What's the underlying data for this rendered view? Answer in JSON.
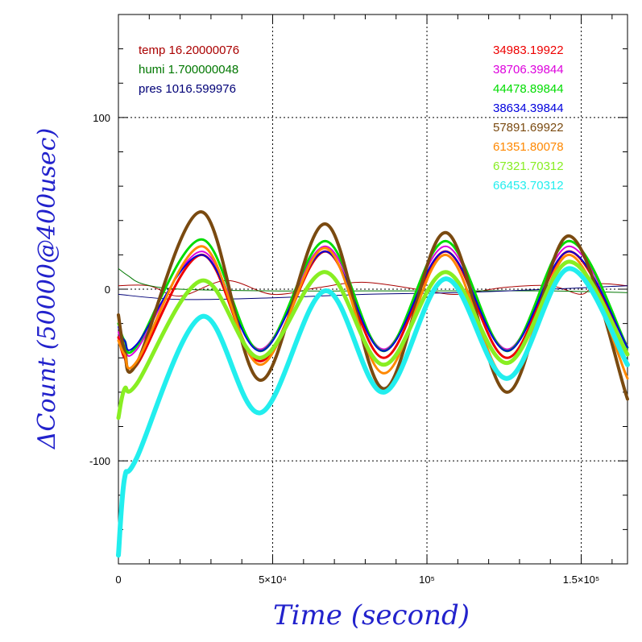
{
  "chart_data": {
    "type": "line",
    "xlabel": "Time (second)",
    "ylabel": "ΔCount (50000@400usec)",
    "xlim": [
      0,
      165000
    ],
    "ylim": [
      -160,
      160
    ],
    "x_ticks": [
      {
        "value": 0,
        "label": "0"
      },
      {
        "value": 50000,
        "label": "5×10⁴"
      },
      {
        "value": 100000,
        "label": "10⁵"
      },
      {
        "value": 150000,
        "label": "1.5×10⁵"
      }
    ],
    "y_ticks": [
      {
        "value": 100,
        "label": "100"
      },
      {
        "value": 0,
        "label": "0"
      },
      {
        "value": -100,
        "label": "-100"
      }
    ],
    "grid": true,
    "env_legend": [
      {
        "text": "temp 16.20000076",
        "color": "#aa0000"
      },
      {
        "text": "humi 1.700000048",
        "color": "#007700"
      },
      {
        "text": "pres 1016.599976",
        "color": "#000077"
      }
    ],
    "series": [
      {
        "name": "34983.19922",
        "color": "#ee0000",
        "width": 3,
        "x": [
          0,
          2000,
          6000,
          27000,
          46000,
          67000,
          86000,
          106000,
          126000,
          146000,
          165000
        ],
        "y": [
          -28,
          -40,
          -44,
          20,
          -42,
          22,
          -40,
          22,
          -40,
          22,
          -38
        ]
      },
      {
        "name": "38706.39844",
        "color": "#dd00dd",
        "width": 2,
        "x": [
          0,
          2000,
          6000,
          27000,
          46000,
          67000,
          86000,
          106000,
          126000,
          146000,
          165000
        ],
        "y": [
          -25,
          -33,
          -35,
          22,
          -35,
          25,
          -35,
          25,
          -35,
          25,
          -33
        ]
      },
      {
        "name": "44478.89844",
        "color": "#00dd00",
        "width": 3,
        "x": [
          0,
          2000,
          6000,
          27000,
          46000,
          67000,
          86000,
          106000,
          126000,
          146000,
          165000
        ],
        "y": [
          -20,
          -30,
          -33,
          29,
          -36,
          28,
          -36,
          28,
          -36,
          28,
          -34
        ]
      },
      {
        "name": "38634.39844",
        "color": "#0000dd",
        "width": 2,
        "x": [
          0,
          2000,
          6000,
          27000,
          46000,
          67000,
          86000,
          106000,
          126000,
          146000,
          165000
        ],
        "y": [
          -22,
          -30,
          -32,
          20,
          -36,
          22,
          -36,
          22,
          -36,
          22,
          -34
        ]
      },
      {
        "name": "57891.69922",
        "color": "#7a4a10",
        "width": 4,
        "x": [
          0,
          2000,
          6000,
          27000,
          46000,
          67000,
          86000,
          106000,
          126000,
          146000,
          165000
        ],
        "y": [
          -15,
          -36,
          -43,
          45,
          -53,
          38,
          -58,
          33,
          -60,
          31,
          -64
        ]
      },
      {
        "name": "61351.80078",
        "color": "#ff8800",
        "width": 3,
        "x": [
          0,
          2000,
          6000,
          27000,
          46000,
          67000,
          86000,
          106000,
          126000,
          146000,
          165000
        ],
        "y": [
          -30,
          -38,
          -42,
          25,
          -44,
          24,
          -49,
          20,
          -52,
          20,
          -52
        ]
      },
      {
        "name": "67321.70312",
        "color": "#88ee22",
        "width": 5,
        "x": [
          0,
          2000,
          6000,
          27000,
          46000,
          67000,
          86000,
          106000,
          126000,
          146000,
          165000
        ],
        "y": [
          -75,
          -58,
          -55,
          5,
          -40,
          10,
          -44,
          10,
          -43,
          16,
          -38
        ]
      },
      {
        "name": "66453.70312",
        "color": "#22eeee",
        "width": 6,
        "x": [
          0,
          2000,
          6000,
          27000,
          46000,
          67000,
          86000,
          106000,
          126000,
          146000,
          165000
        ],
        "y": [
          -155,
          -110,
          -98,
          -16,
          -72,
          -1,
          -60,
          6,
          -52,
          12,
          -44
        ]
      }
    ],
    "env_series": [
      {
        "color": "#aa0000",
        "width": 1,
        "x": [
          0,
          10000,
          20000,
          35000,
          50000,
          65000,
          80000,
          100000,
          110000,
          125000,
          140000,
          150000,
          155000,
          165000
        ],
        "y": [
          2,
          2,
          -4,
          5,
          -3,
          1,
          4,
          -1,
          -3,
          1,
          2,
          -3,
          3,
          2
        ]
      },
      {
        "color": "#007700",
        "width": 1,
        "x": [
          0,
          3000,
          8000,
          20000,
          50000,
          80000,
          110000,
          140000,
          165000
        ],
        "y": [
          12,
          8,
          3,
          0,
          -1,
          -1,
          -1,
          -1,
          -2
        ]
      },
      {
        "color": "#000077",
        "width": 1,
        "x": [
          0,
          20000,
          50000,
          80000,
          110000,
          140000,
          165000
        ],
        "y": [
          -3,
          -6,
          -5,
          -3,
          -2,
          0,
          2
        ]
      }
    ]
  }
}
